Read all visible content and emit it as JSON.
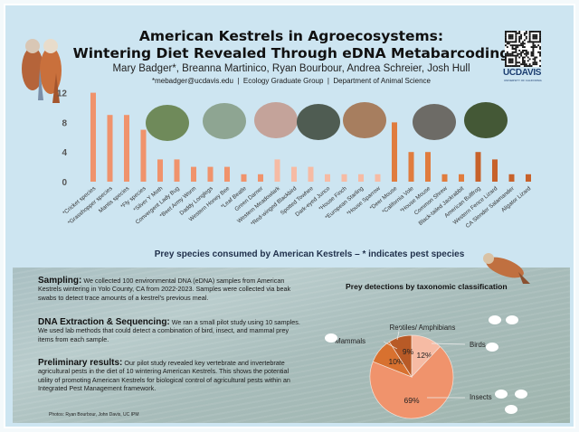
{
  "header": {
    "title_line1": "American Kestrels in Agroecosystems:",
    "title_line2": "Wintering Diet Revealed Through eDNA Metabarcoding",
    "authors": "Mary Badger*, Breanna Martinico, Ryan Bourbour, Andrea Schreier, Josh Hull",
    "affiliation": "*mebadger@ucdavis.edu  |  Ecology Graduate Group  |  Department of Animal Science",
    "logo": "UCDAVIS",
    "logo_sub": "UNIVERSITY OF CALIFORNIA"
  },
  "colors": {
    "insects": "#f0936c",
    "birds": "#f6bba4",
    "mammals": "#e07c3e",
    "herps": "#c7622b",
    "background": "#cde5f1"
  },
  "chart_data": [
    {
      "type": "bar",
      "title": "Prey species consumed by American Kestrels – * indicates pest species",
      "ylim": [
        0,
        12
      ],
      "yticks": [
        0,
        4,
        8,
        12
      ],
      "categories": [
        "*Cricket species",
        "*Grasshopper species",
        "Mantis species",
        "*Fly species",
        "*Silver Y Moth",
        "Convergent Lady Bug",
        "*Beet Army Worm",
        "Daddy Longlegs",
        "Western Honey Bee",
        "*Leaf Beatle",
        "Green Darner",
        "Western Meadowlark",
        "*Red-winged Blackbird",
        "Spotted Towhee",
        "Dark-eyed Junco",
        "*House Finch",
        "*European Starling",
        "*House Sparrow",
        "*Deer Mouse",
        "*California Vole",
        "*House Mouse",
        "Common Shrew",
        "Black-tailed Jackrabbit",
        "American Bullfrog",
        "Western Fence Lizard",
        "CA Slender Salamander",
        "Aligator Lizard"
      ],
      "values": [
        12,
        9,
        9,
        7,
        3,
        3,
        2,
        2,
        2,
        1,
        1,
        3,
        2,
        2,
        1,
        1,
        1,
        1,
        8,
        4,
        4,
        1,
        1,
        4,
        3,
        1,
        1
      ],
      "groups": [
        "insects",
        "insects",
        "insects",
        "insects",
        "insects",
        "insects",
        "insects",
        "insects",
        "insects",
        "insects",
        "insects",
        "birds",
        "birds",
        "birds",
        "birds",
        "birds",
        "birds",
        "birds",
        "mammals",
        "mammals",
        "mammals",
        "mammals",
        "mammals",
        "herps",
        "herps",
        "herps",
        "herps"
      ]
    },
    {
      "type": "pie",
      "title": "Prey detections by taxonomic classification",
      "slices": [
        {
          "label": "Birds",
          "value": 12,
          "text": "12%",
          "color": "#f6bba4"
        },
        {
          "label": "Insects",
          "value": 69,
          "text": "69%",
          "color": "#f0936c"
        },
        {
          "label": "Mammals",
          "value": 10,
          "text": "10%",
          "color": "#d8712f"
        },
        {
          "label": "Reptiles/ Amphibians",
          "value": 9,
          "text": "9%",
          "color": "#b85a26"
        }
      ]
    }
  ],
  "sections": [
    {
      "heading": "Sampling:",
      "body": "We collected 100 environmental DNA (eDNA) samples from American Kestrels wintering in Yolo County, CA from 2022-2023. Samples were collected via beak swabs to detect trace amounts of a kestrel's previous meal."
    },
    {
      "heading": "DNA Extraction & Sequencing:",
      "body": "We ran a small pilot study using 10 samples. We used lab methods that could detect a combination of bird, insect, and mammal prey items from each sample."
    },
    {
      "heading": "Preliminary results:",
      "body": "Our pilot study revealed key vertebrate and invertebrate agricultural pests in the diet of 10 wintering American Kestrels. This shows the potential utility of promoting American Kestrels for biological control of agricultural pests within an Integrated Pest Management framework."
    }
  ],
  "credit": "Photos: Ryan Bourbour, John Davis, UC IPM"
}
